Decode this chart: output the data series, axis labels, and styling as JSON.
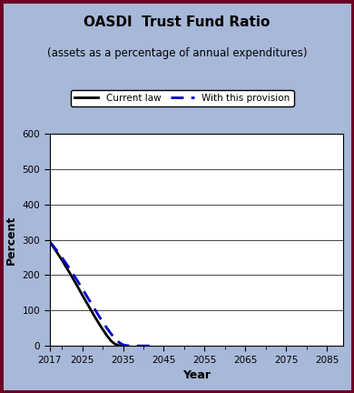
{
  "title_line1": "OASDI  Trust Fund Ratio",
  "title_line2": "(assets as a percentage of annual expenditures)",
  "xlabel": "Year",
  "ylabel": "Percent",
  "background_color": "#a8b8d8",
  "plot_bg_color": "#ffffff",
  "xlim": [
    2017,
    2089
  ],
  "ylim": [
    0,
    600
  ],
  "xticks": [
    2017,
    2025,
    2035,
    2045,
    2055,
    2065,
    2075,
    2085
  ],
  "yticks": [
    0,
    100,
    200,
    300,
    400,
    500,
    600
  ],
  "current_law_x": [
    2017,
    2018,
    2019,
    2020,
    2021,
    2022,
    2023,
    2024,
    2025,
    2026,
    2027,
    2028,
    2029,
    2030,
    2031,
    2032,
    2033,
    2034,
    2035,
    2036
  ],
  "current_law_y": [
    295,
    278,
    261,
    243,
    224,
    205,
    185,
    165,
    144,
    124,
    104,
    84,
    65,
    47,
    30,
    15,
    5,
    1,
    0,
    0
  ],
  "provision_x": [
    2017,
    2018,
    2019,
    2020,
    2021,
    2022,
    2023,
    2024,
    2025,
    2026,
    2027,
    2028,
    2029,
    2030,
    2031,
    2032,
    2033,
    2034,
    2035,
    2036,
    2037,
    2038,
    2039,
    2040,
    2041,
    2042,
    2043
  ],
  "provision_y": [
    295,
    281,
    266,
    250,
    234,
    217,
    199,
    181,
    162,
    143,
    124,
    105,
    86,
    68,
    51,
    35,
    21,
    10,
    3,
    0.5,
    0.2,
    0.1,
    0.05,
    0.02,
    0.01,
    0,
    0
  ],
  "current_law_color": "#000000",
  "provision_color": "#0000cc",
  "legend_labels": [
    "Current law",
    "With this provision"
  ],
  "border_color": "#6b0020"
}
